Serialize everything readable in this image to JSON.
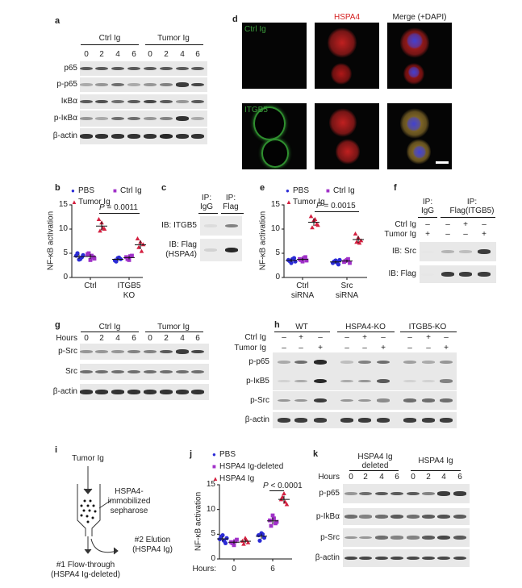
{
  "panel_labels": {
    "a": "a",
    "b": "b",
    "c": "c",
    "d": "d",
    "e": "e",
    "f": "f",
    "g": "g",
    "h": "h",
    "i": "i",
    "j": "j",
    "k": "k"
  },
  "a": {
    "groups": [
      "Ctrl Ig",
      "Tumor Ig"
    ],
    "lanes": [
      "0",
      "2",
      "4",
      "6",
      "0",
      "2",
      "4",
      "6"
    ],
    "blots": [
      {
        "label": "p65",
        "bands": [
          0.7,
          0.7,
          0.7,
          0.7,
          0.7,
          0.7,
          0.7,
          0.7
        ]
      },
      {
        "label": "p-p65",
        "bands": [
          0.3,
          0.4,
          0.6,
          0.3,
          0.4,
          0.5,
          0.85,
          0.8
        ]
      },
      {
        "label": "IκBα",
        "bands": [
          0.7,
          0.75,
          0.6,
          0.7,
          0.8,
          0.7,
          0.4,
          0.7
        ]
      },
      {
        "label": "p-IκBα",
        "bands": [
          0.4,
          0.3,
          0.6,
          0.6,
          0.4,
          0.5,
          0.9,
          0.3
        ]
      },
      {
        "label": "β-actin",
        "bands": [
          0.9,
          0.9,
          0.9,
          0.9,
          0.9,
          0.95,
          0.9,
          0.9
        ]
      }
    ]
  },
  "d": {
    "col_titles": [
      "HSPA4",
      "Merge (+DAPI)"
    ],
    "row_labels": [
      "Ctrl Ig",
      "ITGB5"
    ],
    "colors": {
      "green": "#3a9a3a",
      "red": "#d42020",
      "blue": "#3030c0"
    }
  },
  "b": {
    "legend": [
      "PBS",
      "Ctrl Ig",
      "Tumor Ig"
    ],
    "p_italic": "P",
    "p_text": " = 0.0011"
  },
  "c": {
    "ip": [
      "IP:",
      "IgG",
      "IP:",
      "Flag"
    ],
    "blots": [
      {
        "label": "IB: ITGB5",
        "bands": [
          0.05,
          0.5
        ]
      },
      {
        "label": "IB: Flag",
        "label2": "(HSPA4)",
        "bands": [
          0.1,
          0.95
        ]
      }
    ]
  },
  "e": {
    "legend": [
      "PBS",
      "Ctrl Ig",
      "Tumor Ig"
    ],
    "p_italic": "P",
    "p_text": " = 0.0015"
  },
  "f": {
    "ip": [
      "IP:",
      "IgG",
      "IP:",
      "Flag(ITGB5)"
    ],
    "rows": [
      {
        "label": "Ctrl Ig",
        "signs": [
          "–",
          "–",
          "+",
          "–"
        ]
      },
      {
        "label": "Tumor Ig",
        "signs": [
          "+",
          "–",
          "–",
          "+"
        ]
      }
    ],
    "blots": [
      {
        "label": "IB: Src",
        "bands": [
          0,
          0.25,
          0.2,
          0.85
        ]
      },
      {
        "label": "IB: Flag",
        "bands": [
          0,
          0.85,
          0.85,
          0.85
        ]
      }
    ]
  },
  "g": {
    "groups": [
      "Ctrl Ig",
      "Tumor Ig"
    ],
    "hours_label": "Hours",
    "lanes": [
      "0",
      "2",
      "4",
      "6",
      "0",
      "2",
      "4",
      "6"
    ],
    "blots": [
      {
        "label": "p-Src",
        "bands": [
          0.4,
          0.4,
          0.4,
          0.5,
          0.5,
          0.7,
          0.85,
          0.8
        ]
      },
      {
        "label": "Src",
        "bands": [
          0.6,
          0.6,
          0.6,
          0.6,
          0.6,
          0.6,
          0.6,
          0.6
        ]
      },
      {
        "label": "β-actin",
        "bands": [
          0.9,
          0.9,
          0.9,
          0.9,
          0.9,
          0.9,
          0.9,
          0.9
        ]
      }
    ]
  },
  "h": {
    "groups": [
      "WT",
      "HSPA4-KO",
      "ITGB5-KO"
    ],
    "rows": [
      {
        "label": "Ctrl Ig",
        "signs": [
          "–",
          "+",
          "–",
          "–",
          "+",
          "–",
          "–",
          "+",
          "–"
        ]
      },
      {
        "label": "Tumor Ig",
        "signs": [
          "–",
          "–",
          "+",
          "–",
          "–",
          "+",
          "–",
          "–",
          "+"
        ]
      }
    ],
    "blots": [
      {
        "label": "p-p65",
        "bands": [
          0.3,
          0.6,
          0.95,
          0.2,
          0.5,
          0.6,
          0.35,
          0.3,
          0.4
        ]
      },
      {
        "label": "p-IκB5",
        "bands": [
          0.1,
          0.3,
          0.95,
          0.3,
          0.4,
          0.7,
          0.1,
          0.1,
          0.5
        ]
      },
      {
        "label": "p-Src",
        "bands": [
          0.4,
          0.4,
          0.85,
          0.4,
          0.4,
          0.45,
          0.6,
          0.6,
          0.6
        ]
      },
      {
        "label": "β-actin",
        "bands": [
          0.85,
          0.85,
          0.85,
          0.85,
          0.85,
          0.85,
          0.85,
          0.85,
          0.85
        ]
      }
    ]
  },
  "i": {
    "input": "Tumor Ig",
    "column": [
      "HSPA4-",
      "immobilized",
      "sepharose"
    ],
    "elution": [
      "#2 Elution",
      "(HSPA4 Ig)"
    ],
    "flow": [
      "#1 Flow-through",
      "(HSPA4 Ig-deleted)"
    ]
  },
  "j": {
    "legend": [
      "PBS",
      "HSPA4 Ig-deleted",
      "HSPA4 Ig"
    ],
    "p_italic": "P",
    "p_text": " < 0.0001",
    "hours_label": "Hours:"
  },
  "k": {
    "groups": [
      "HSPA4 Ig",
      "deleted",
      "HSPA4 Ig"
    ],
    "hours_label": "Hours",
    "lanes": [
      "0",
      "2",
      "4",
      "6",
      "0",
      "2",
      "4",
      "6"
    ],
    "blots": [
      {
        "label": "p-p65",
        "bands": [
          0.4,
          0.6,
          0.7,
          0.7,
          0.7,
          0.5,
          0.85,
          0.85
        ]
      },
      {
        "label": "p-IkBα",
        "bands": [
          0.6,
          0.5,
          0.6,
          0.7,
          0.6,
          0.7,
          0.75,
          0.7
        ]
      },
      {
        "label": "p-Src",
        "bands": [
          0.4,
          0.4,
          0.6,
          0.5,
          0.5,
          0.7,
          0.8,
          0.7
        ]
      },
      {
        "label": "β-actin",
        "bands": [
          0.8,
          0.8,
          0.8,
          0.8,
          0.8,
          0.8,
          0.8,
          0.8
        ]
      }
    ]
  },
  "chart_data": [
    {
      "id": "b",
      "type": "scatter",
      "ylabel": "NF-κB activation",
      "ylim": [
        0,
        15
      ],
      "yticks": [
        0,
        5,
        10,
        15
      ],
      "categories": [
        "Ctrl",
        "ITGB5 KO"
      ],
      "series": [
        {
          "name": "PBS",
          "color": "#2b2bd6",
          "marker": "circle",
          "values": [
            [
              4.5,
              3.7,
              4.2,
              5.0,
              3.8,
              4.6
            ],
            [
              3.5,
              4.0,
              3.8,
              3.3,
              4.1
            ]
          ]
        },
        {
          "name": "Ctrl Ig",
          "color": "#a030c8",
          "marker": "square",
          "values": [
            [
              4.8,
              3.6,
              4.2,
              5.0,
              4.5,
              3.9
            ],
            [
              4.2,
              3.6,
              4.5,
              3.8,
              4.4
            ]
          ]
        },
        {
          "name": "Tumor Ig",
          "color": "#d42040",
          "marker": "triangle",
          "values": [
            [
              12.0,
              11.3,
              10.0,
              9.6,
              10.2
            ],
            [
              8.0,
              7.3,
              6.8,
              6.2,
              5.4
            ]
          ]
        }
      ]
    },
    {
      "id": "e",
      "type": "scatter",
      "ylabel": "NF-κB activation",
      "ylim": [
        0,
        15
      ],
      "yticks": [
        0,
        5,
        10,
        15
      ],
      "categories": [
        "Ctrl siRNA",
        "Src siRNA"
      ],
      "series": [
        {
          "name": "PBS",
          "color": "#2b2bd6",
          "marker": "circle",
          "values": [
            [
              3.6,
              3.0,
              4.0,
              3.4,
              3.8,
              3.3
            ],
            [
              3.0,
              3.5,
              2.7,
              3.3,
              3.1,
              3.6
            ]
          ]
        },
        {
          "name": "Ctrl Ig",
          "color": "#a030c8",
          "marker": "square",
          "values": [
            [
              3.8,
              3.3,
              4.2,
              3.6,
              4.0,
              3.5
            ],
            [
              3.2,
              3.6,
              3.0,
              3.4,
              3.8
            ]
          ]
        },
        {
          "name": "Tumor Ig",
          "color": "#d42040",
          "marker": "triangle",
          "values": [
            [
              12.6,
              11.8,
              11.0,
              10.3,
              12.0,
              10.8
            ],
            [
              9.0,
              8.2,
              7.6,
              7.3,
              7.1
            ]
          ]
        }
      ]
    },
    {
      "id": "j",
      "type": "scatter",
      "ylabel": "NF-κB activation",
      "ylim": [
        0,
        15
      ],
      "yticks": [
        0,
        5,
        10,
        15
      ],
      "categories": [
        "0",
        "6"
      ],
      "series": [
        {
          "name": "PBS",
          "color": "#2b2bd6",
          "marker": "circle",
          "values": [
            [
              4.0,
              4.8,
              3.2,
              4.5,
              3.7,
              4.2
            ],
            [
              4.8,
              5.2,
              4.3,
              3.7,
              5.0
            ]
          ]
        },
        {
          "name": "HSPA4 Ig-deleted",
          "color": "#a030c8",
          "marker": "square",
          "values": [
            [
              3.4,
              2.8,
              3.9,
              3.2,
              3.6
            ],
            [
              7.8,
              8.8,
              7.2,
              6.7,
              8.2,
              7.5
            ]
          ]
        },
        {
          "name": "HSPA4 Ig",
          "color": "#d42040",
          "marker": "triangle",
          "values": [
            [
              3.6,
              4.2,
              3.3,
              3.0,
              3.8
            ],
            [
              12.0,
              13.2,
              11.0,
              12.5,
              11.5
            ]
          ]
        }
      ]
    }
  ]
}
